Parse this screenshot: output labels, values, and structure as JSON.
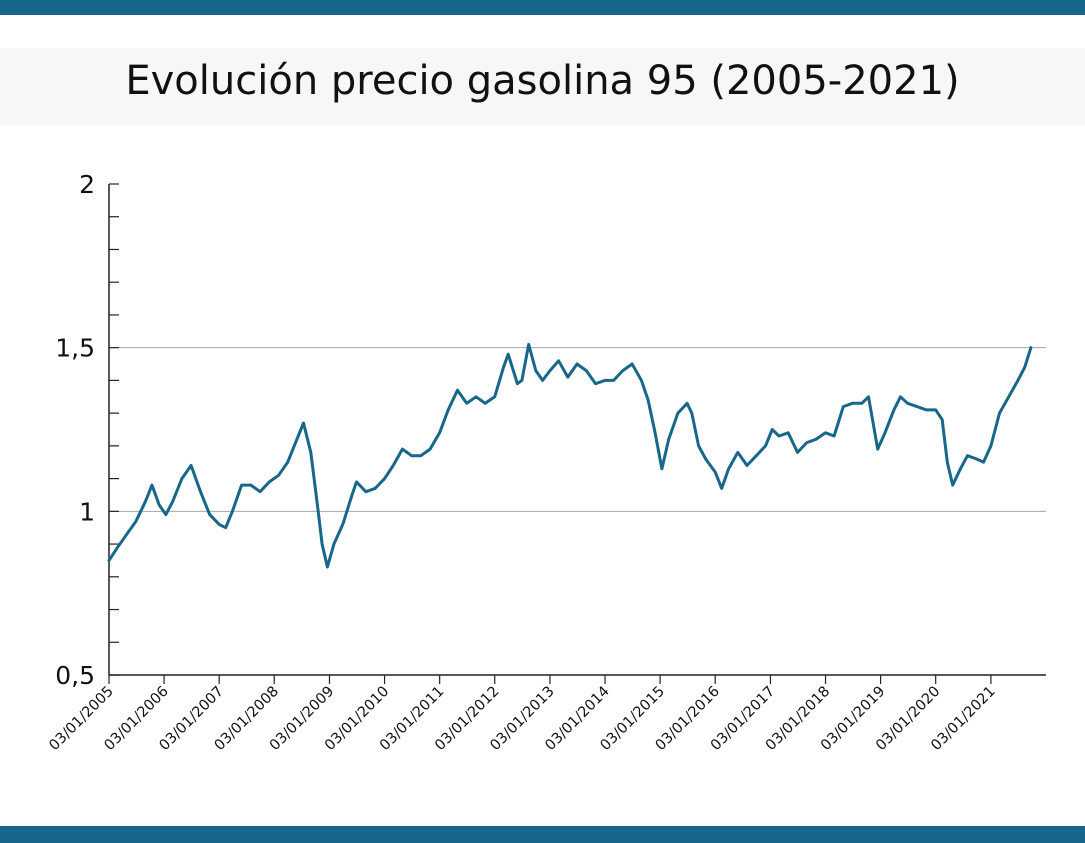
{
  "colors": {
    "accent": "#16678a",
    "series": "#16678a",
    "gridline": "#a6a6a6",
    "axis": "#222222"
  },
  "chart_data": {
    "type": "line",
    "title": "Evolución precio gasolina 95 (2005-2021)",
    "xlabel": "",
    "ylabel": "",
    "ylim": [
      0.5,
      2
    ],
    "xlim": [
      "2005-01-03",
      "2022-01-03"
    ],
    "y_ticks": [
      {
        "value": 0.5,
        "label": "0,5"
      },
      {
        "value": 1,
        "label": "1"
      },
      {
        "value": 1.5,
        "label": "1,5"
      },
      {
        "value": 2,
        "label": "2"
      }
    ],
    "y_minor_step": 0.1,
    "gridlines_at": [
      1,
      1.5
    ],
    "x_ticks": [
      {
        "date": "2005-01-03",
        "label": "03/01/2005"
      },
      {
        "date": "2006-01-03",
        "label": "03/01/2006"
      },
      {
        "date": "2007-01-03",
        "label": "03/01/2007"
      },
      {
        "date": "2008-01-03",
        "label": "03/01/2008"
      },
      {
        "date": "2009-01-03",
        "label": "03/01/2009"
      },
      {
        "date": "2010-01-03",
        "label": "03/01/2010"
      },
      {
        "date": "2011-01-03",
        "label": "03/01/2011"
      },
      {
        "date": "2012-01-03",
        "label": "03/01/2012"
      },
      {
        "date": "2013-01-03",
        "label": "03/01/2013"
      },
      {
        "date": "2014-01-03",
        "label": "03/01/2014"
      },
      {
        "date": "2015-01-03",
        "label": "03/01/2015"
      },
      {
        "date": "2016-01-03",
        "label": "03/01/2016"
      },
      {
        "date": "2017-01-03",
        "label": "03/01/2017"
      },
      {
        "date": "2018-01-03",
        "label": "03/01/2018"
      },
      {
        "date": "2019-01-03",
        "label": "03/01/2019"
      },
      {
        "date": "2020-01-03",
        "label": "03/01/2020"
      },
      {
        "date": "2021-01-03",
        "label": "03/01/2021"
      }
    ],
    "series": [
      {
        "name": "",
        "points": [
          [
            "2005-01-03",
            0.85
          ],
          [
            "2005-03-01",
            0.89
          ],
          [
            "2005-05-01",
            0.93
          ],
          [
            "2005-07-01",
            0.97
          ],
          [
            "2005-09-01",
            1.03
          ],
          [
            "2005-10-15",
            1.08
          ],
          [
            "2005-12-01",
            1.02
          ],
          [
            "2006-01-15",
            0.99
          ],
          [
            "2006-03-01",
            1.03
          ],
          [
            "2006-05-01",
            1.1
          ],
          [
            "2006-07-01",
            1.14
          ],
          [
            "2006-09-01",
            1.06
          ],
          [
            "2006-11-01",
            0.99
          ],
          [
            "2007-01-03",
            0.96
          ],
          [
            "2007-02-15",
            0.95
          ],
          [
            "2007-04-01",
            1.0
          ],
          [
            "2007-06-01",
            1.08
          ],
          [
            "2007-08-01",
            1.08
          ],
          [
            "2007-10-01",
            1.06
          ],
          [
            "2007-12-01",
            1.09
          ],
          [
            "2008-02-01",
            1.11
          ],
          [
            "2008-04-01",
            1.15
          ],
          [
            "2008-06-01",
            1.22
          ],
          [
            "2008-07-15",
            1.27
          ],
          [
            "2008-09-01",
            1.18
          ],
          [
            "2008-10-15",
            1.02
          ],
          [
            "2008-11-15",
            0.9
          ],
          [
            "2008-12-20",
            0.83
          ],
          [
            "2009-02-01",
            0.9
          ],
          [
            "2009-04-01",
            0.96
          ],
          [
            "2009-06-01",
            1.05
          ],
          [
            "2009-07-01",
            1.09
          ],
          [
            "2009-09-01",
            1.06
          ],
          [
            "2009-11-01",
            1.07
          ],
          [
            "2010-01-03",
            1.1
          ],
          [
            "2010-03-01",
            1.14
          ],
          [
            "2010-05-01",
            1.19
          ],
          [
            "2010-07-01",
            1.17
          ],
          [
            "2010-09-01",
            1.17
          ],
          [
            "2010-11-01",
            1.19
          ],
          [
            "2011-01-03",
            1.24
          ],
          [
            "2011-03-01",
            1.31
          ],
          [
            "2011-05-01",
            1.37
          ],
          [
            "2011-07-01",
            1.33
          ],
          [
            "2011-09-01",
            1.35
          ],
          [
            "2011-11-01",
            1.33
          ],
          [
            "2012-01-03",
            1.35
          ],
          [
            "2012-03-01",
            1.44
          ],
          [
            "2012-04-01",
            1.48
          ],
          [
            "2012-06-01",
            1.39
          ],
          [
            "2012-07-01",
            1.4
          ],
          [
            "2012-08-15",
            1.51
          ],
          [
            "2012-10-01",
            1.43
          ],
          [
            "2012-11-15",
            1.4
          ],
          [
            "2013-01-03",
            1.43
          ],
          [
            "2013-03-01",
            1.46
          ],
          [
            "2013-05-01",
            1.41
          ],
          [
            "2013-07-01",
            1.45
          ],
          [
            "2013-09-01",
            1.43
          ],
          [
            "2013-11-01",
            1.39
          ],
          [
            "2014-01-03",
            1.4
          ],
          [
            "2014-03-01",
            1.4
          ],
          [
            "2014-05-01",
            1.43
          ],
          [
            "2014-07-01",
            1.45
          ],
          [
            "2014-09-01",
            1.4
          ],
          [
            "2014-10-15",
            1.34
          ],
          [
            "2014-12-01",
            1.24
          ],
          [
            "2015-01-15",
            1.13
          ],
          [
            "2015-03-01",
            1.22
          ],
          [
            "2015-05-01",
            1.3
          ],
          [
            "2015-07-01",
            1.33
          ],
          [
            "2015-08-01",
            1.3
          ],
          [
            "2015-09-15",
            1.2
          ],
          [
            "2015-11-01",
            1.16
          ],
          [
            "2016-01-03",
            1.12
          ],
          [
            "2016-02-15",
            1.07
          ],
          [
            "2016-04-01",
            1.13
          ],
          [
            "2016-06-01",
            1.18
          ],
          [
            "2016-08-01",
            1.14
          ],
          [
            "2016-10-01",
            1.17
          ],
          [
            "2016-12-01",
            1.2
          ],
          [
            "2017-01-15",
            1.25
          ],
          [
            "2017-03-01",
            1.23
          ],
          [
            "2017-05-01",
            1.24
          ],
          [
            "2017-07-01",
            1.18
          ],
          [
            "2017-09-01",
            1.21
          ],
          [
            "2017-11-01",
            1.22
          ],
          [
            "2018-01-03",
            1.24
          ],
          [
            "2018-03-01",
            1.23
          ],
          [
            "2018-05-01",
            1.32
          ],
          [
            "2018-07-01",
            1.33
          ],
          [
            "2018-09-01",
            1.33
          ],
          [
            "2018-10-15",
            1.35
          ],
          [
            "2018-12-15",
            1.19
          ],
          [
            "2019-02-01",
            1.24
          ],
          [
            "2019-04-01",
            1.31
          ],
          [
            "2019-05-15",
            1.35
          ],
          [
            "2019-07-01",
            1.33
          ],
          [
            "2019-09-01",
            1.32
          ],
          [
            "2019-11-01",
            1.31
          ],
          [
            "2020-01-03",
            1.31
          ],
          [
            "2020-02-15",
            1.28
          ],
          [
            "2020-03-20",
            1.15
          ],
          [
            "2020-04-25",
            1.08
          ],
          [
            "2020-06-15",
            1.13
          ],
          [
            "2020-08-01",
            1.17
          ],
          [
            "2020-10-01",
            1.16
          ],
          [
            "2020-11-15",
            1.15
          ],
          [
            "2021-01-03",
            1.2
          ],
          [
            "2021-03-01",
            1.3
          ],
          [
            "2021-05-01",
            1.35
          ],
          [
            "2021-07-01",
            1.4
          ],
          [
            "2021-08-15",
            1.44
          ],
          [
            "2021-09-25",
            1.5
          ]
        ]
      }
    ]
  }
}
